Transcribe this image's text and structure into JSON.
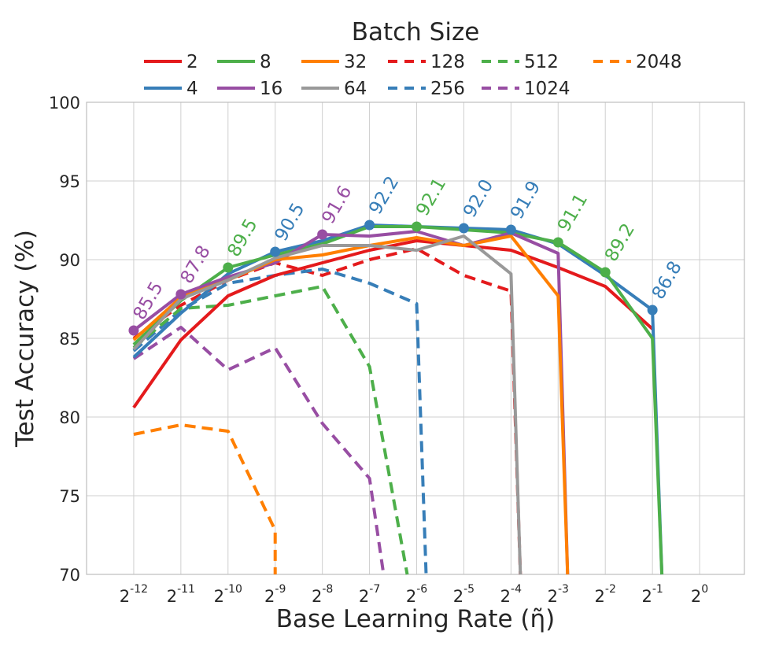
{
  "chart_data": {
    "type": "line",
    "title": "",
    "xlabel": "Base Learning Rate (η̃)",
    "ylabel": "Test Accuracy (%)",
    "legend_title": "Batch Size",
    "legend_position": "top",
    "grid": true,
    "x_scale": "log2",
    "x_ticks": [
      {
        "exp": -12,
        "base": "2",
        "sup": "-12"
      },
      {
        "exp": -11,
        "base": "2",
        "sup": "-11"
      },
      {
        "exp": -10,
        "base": "2",
        "sup": "-10"
      },
      {
        "exp": -9,
        "base": "2",
        "sup": "-9"
      },
      {
        "exp": -8,
        "base": "2",
        "sup": "-8"
      },
      {
        "exp": -7,
        "base": "2",
        "sup": "-7"
      },
      {
        "exp": -6,
        "base": "2",
        "sup": "-6"
      },
      {
        "exp": -5,
        "base": "2",
        "sup": "-5"
      },
      {
        "exp": -4,
        "base": "2",
        "sup": "-4"
      },
      {
        "exp": -3,
        "base": "2",
        "sup": "-3"
      },
      {
        "exp": -2,
        "base": "2",
        "sup": "-2"
      },
      {
        "exp": -1,
        "base": "2",
        "sup": "-1"
      },
      {
        "exp": 0,
        "base": "2",
        "sup": "0"
      }
    ],
    "xlim_exp": [
      -13,
      0.95
    ],
    "y_ticks": [
      "100",
      "95",
      "90",
      "85",
      "80",
      "75",
      "70"
    ],
    "ylim": [
      70,
      100
    ],
    "series": [
      {
        "name": "2",
        "color": "#e41a1c",
        "dash": false,
        "points": [
          [
            -12,
            80.6
          ],
          [
            -11,
            84.9
          ],
          [
            -10,
            87.7
          ],
          [
            -9,
            89.0
          ],
          [
            -8,
            89.8
          ],
          [
            -7,
            90.6
          ],
          [
            -6,
            91.2
          ],
          [
            -5,
            90.9
          ],
          [
            -4,
            90.6
          ],
          [
            -3,
            89.5
          ],
          [
            -2,
            88.3
          ],
          [
            -1,
            85.6
          ]
        ]
      },
      {
        "name": "4",
        "color": "#377eb8",
        "dash": false,
        "points": [
          [
            -12,
            83.8
          ],
          [
            -11,
            86.6
          ],
          [
            -10,
            89.1
          ],
          [
            -9,
            90.5
          ],
          [
            -8,
            91.2
          ],
          [
            -7,
            92.2
          ],
          [
            -6,
            92.1
          ],
          [
            -5,
            92.0
          ],
          [
            -4,
            91.9
          ],
          [
            -3,
            91.0
          ],
          [
            -2,
            89.0
          ],
          [
            -1,
            86.8
          ],
          [
            -0.8,
            70.0
          ]
        ]
      },
      {
        "name": "8",
        "color": "#4daf4a",
        "dash": false,
        "points": [
          [
            -12,
            84.6
          ],
          [
            -11,
            87.4
          ],
          [
            -10,
            89.5
          ],
          [
            -9,
            90.3
          ],
          [
            -8,
            91.0
          ],
          [
            -7,
            92.1
          ],
          [
            -6,
            92.1
          ],
          [
            -5,
            91.9
          ],
          [
            -4,
            91.7
          ],
          [
            -3,
            91.1
          ],
          [
            -2,
            89.2
          ],
          [
            -1,
            85.0
          ],
          [
            -0.8,
            70.0
          ]
        ]
      },
      {
        "name": "16",
        "color": "#984ea3",
        "dash": false,
        "points": [
          [
            -12,
            85.5
          ],
          [
            -11,
            87.8
          ],
          [
            -10,
            88.9
          ],
          [
            -9,
            89.8
          ],
          [
            -8,
            91.6
          ],
          [
            -7,
            91.5
          ],
          [
            -6,
            91.8
          ],
          [
            -5,
            90.9
          ],
          [
            -4,
            91.7
          ],
          [
            -3,
            90.4
          ],
          [
            -2.8,
            70.0
          ]
        ]
      },
      {
        "name": "32",
        "color": "#ff7f00",
        "dash": false,
        "points": [
          [
            -12,
            84.9
          ],
          [
            -11,
            87.6
          ],
          [
            -10,
            88.7
          ],
          [
            -9,
            90.0
          ],
          [
            -8,
            90.3
          ],
          [
            -7,
            90.9
          ],
          [
            -6,
            91.4
          ],
          [
            -5,
            90.9
          ],
          [
            -4,
            91.5
          ],
          [
            -3,
            87.7
          ],
          [
            -2.8,
            70.0
          ]
        ]
      },
      {
        "name": "64",
        "color": "#999999",
        "dash": false,
        "points": [
          [
            -12,
            84.3
          ],
          [
            -11,
            87.5
          ],
          [
            -10,
            88.7
          ],
          [
            -9,
            90.1
          ],
          [
            -8,
            90.9
          ],
          [
            -7,
            90.9
          ],
          [
            -6,
            90.6
          ],
          [
            -5,
            91.5
          ],
          [
            -4,
            89.1
          ],
          [
            -3.8,
            70.0
          ]
        ]
      },
      {
        "name": "128",
        "color": "#e41a1c",
        "dash": true,
        "points": [
          [
            -12,
            85.0
          ],
          [
            -11,
            87.1
          ],
          [
            -10,
            88.7
          ],
          [
            -9,
            89.8
          ],
          [
            -8,
            89.0
          ],
          [
            -7,
            90.0
          ],
          [
            -6,
            90.7
          ],
          [
            -5,
            89.0
          ],
          [
            -4,
            88.0
          ],
          [
            -3.8,
            70.0
          ]
        ]
      },
      {
        "name": "256",
        "color": "#377eb8",
        "dash": true,
        "points": [
          [
            -12,
            84.2
          ],
          [
            -11,
            86.8
          ],
          [
            -10,
            88.5
          ],
          [
            -9,
            89.0
          ],
          [
            -8,
            89.4
          ],
          [
            -7,
            88.5
          ],
          [
            -6,
            87.2
          ],
          [
            -5.8,
            70.0
          ]
        ]
      },
      {
        "name": "512",
        "color": "#4daf4a",
        "dash": true,
        "points": [
          [
            -12,
            84.4
          ],
          [
            -11,
            86.9
          ],
          [
            -10,
            87.1
          ],
          [
            -9,
            87.7
          ],
          [
            -8,
            88.3
          ],
          [
            -7,
            83.2
          ],
          [
            -6.2,
            70.0
          ]
        ]
      },
      {
        "name": "1024",
        "color": "#984ea3",
        "dash": true,
        "points": [
          [
            -12,
            83.7
          ],
          [
            -11,
            85.7
          ],
          [
            -10,
            83.0
          ],
          [
            -9,
            84.4
          ],
          [
            -8,
            79.6
          ],
          [
            -7,
            76.1
          ],
          [
            -6.7,
            70.0
          ]
        ]
      },
      {
        "name": "2048",
        "color": "#ff7f00",
        "dash": true,
        "points": [
          [
            -12,
            78.9
          ],
          [
            -11,
            79.5
          ],
          [
            -10,
            79.1
          ],
          [
            -9,
            72.8
          ],
          [
            -9,
            70.0
          ]
        ]
      }
    ],
    "annotations": [
      {
        "label": "85.5",
        "x_exp": -12,
        "y": 85.5,
        "color": "#984ea3"
      },
      {
        "label": "87.8",
        "x_exp": -11,
        "y": 87.8,
        "color": "#984ea3"
      },
      {
        "label": "89.5",
        "x_exp": -10,
        "y": 89.5,
        "color": "#4daf4a"
      },
      {
        "label": "90.5",
        "x_exp": -9,
        "y": 90.5,
        "color": "#377eb8"
      },
      {
        "label": "91.6",
        "x_exp": -8,
        "y": 91.6,
        "color": "#984ea3"
      },
      {
        "label": "92.2",
        "x_exp": -7,
        "y": 92.2,
        "color": "#377eb8"
      },
      {
        "label": "92.1",
        "x_exp": -6,
        "y": 92.1,
        "color": "#4daf4a"
      },
      {
        "label": "92.0",
        "x_exp": -5,
        "y": 92.0,
        "color": "#377eb8"
      },
      {
        "label": "91.9",
        "x_exp": -4,
        "y": 91.9,
        "color": "#377eb8"
      },
      {
        "label": "91.1",
        "x_exp": -3,
        "y": 91.1,
        "color": "#4daf4a"
      },
      {
        "label": "89.2",
        "x_exp": -2,
        "y": 89.2,
        "color": "#4daf4a"
      },
      {
        "label": "86.8",
        "x_exp": -1,
        "y": 86.8,
        "color": "#377eb8"
      }
    ]
  }
}
